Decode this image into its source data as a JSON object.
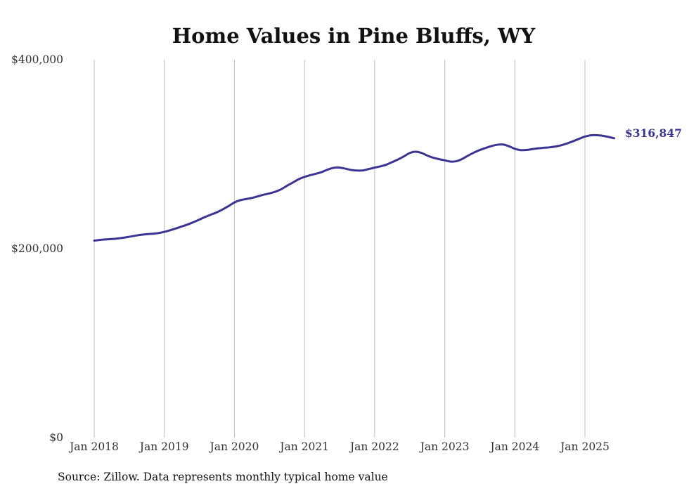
{
  "chart_data": {
    "type": "line",
    "title": "Home Values in Pine Bluffs, WY",
    "xlabel": "",
    "ylabel": "",
    "source": "Source: Zillow. Data represents monthly typical home value",
    "ylim": [
      0,
      400000
    ],
    "yticks": [
      {
        "value": 0,
        "label": "$0"
      },
      {
        "value": 200000,
        "label": "$200,000"
      },
      {
        "value": 400000,
        "label": "$400,000"
      }
    ],
    "xticks": [
      {
        "value": "2018-01",
        "label": "Jan 2018"
      },
      {
        "value": "2019-01",
        "label": "Jan 2019"
      },
      {
        "value": "2020-01",
        "label": "Jan 2020"
      },
      {
        "value": "2021-01",
        "label": "Jan 2021"
      },
      {
        "value": "2022-01",
        "label": "Jan 2022"
      },
      {
        "value": "2023-01",
        "label": "Jan 2023"
      },
      {
        "value": "2024-01",
        "label": "Jan 2024"
      },
      {
        "value": "2025-01",
        "label": "Jan 2025"
      }
    ],
    "grid": "vertical",
    "line_color": "#3b3494",
    "end_label": "$316,847",
    "series": [
      {
        "x": [
          "2018-01",
          "2018-02",
          "2018-03",
          "2018-04",
          "2018-05",
          "2018-06",
          "2018-07",
          "2018-08",
          "2018-09",
          "2018-10",
          "2018-11",
          "2018-12",
          "2019-01",
          "2019-02",
          "2019-03",
          "2019-04",
          "2019-05",
          "2019-06",
          "2019-07",
          "2019-08",
          "2019-09",
          "2019-10",
          "2019-11",
          "2019-12",
          "2020-01",
          "2020-02",
          "2020-03",
          "2020-04",
          "2020-05",
          "2020-06",
          "2020-07",
          "2020-08",
          "2020-09",
          "2020-10",
          "2020-11",
          "2020-12",
          "2021-01",
          "2021-02",
          "2021-03",
          "2021-04",
          "2021-05",
          "2021-06",
          "2021-07",
          "2021-08",
          "2021-09",
          "2021-10",
          "2021-11",
          "2021-12",
          "2022-01",
          "2022-02",
          "2022-03",
          "2022-04",
          "2022-05",
          "2022-06",
          "2022-07",
          "2022-08",
          "2022-09",
          "2022-10",
          "2022-11",
          "2022-12",
          "2023-01",
          "2023-02",
          "2023-03",
          "2023-04",
          "2023-05",
          "2023-06",
          "2023-07",
          "2023-08",
          "2023-09",
          "2023-10",
          "2023-11",
          "2023-12",
          "2024-01",
          "2024-02",
          "2024-03",
          "2024-04",
          "2024-05",
          "2024-06",
          "2024-07",
          "2024-08",
          "2024-09",
          "2024-10",
          "2024-11",
          "2024-12",
          "2025-01",
          "2025-02",
          "2025-03",
          "2025-04",
          "2025-05",
          "2025-06"
        ],
        "values": [
          208500,
          209300,
          209800,
          210200,
          210800,
          211600,
          212600,
          213700,
          214700,
          215300,
          215800,
          216500,
          217800,
          219500,
          221400,
          223500,
          225600,
          228100,
          230800,
          233600,
          236100,
          238500,
          241600,
          245100,
          248900,
          251300,
          252500,
          253700,
          255400,
          257100,
          258500,
          260300,
          262900,
          266600,
          270000,
          273500,
          276000,
          277800,
          279400,
          281200,
          283800,
          285600,
          285800,
          284700,
          283300,
          282700,
          282800,
          284300,
          285800,
          287100,
          288900,
          291600,
          294400,
          297600,
          301200,
          302600,
          301400,
          298600,
          296300,
          294800,
          293500,
          292200,
          292600,
          295000,
          298500,
          301700,
          304400,
          306600,
          308600,
          310000,
          310200,
          308400,
          305700,
          304300,
          304500,
          305400,
          306200,
          306800,
          307300,
          308200,
          309500,
          311500,
          313800,
          316300,
          318600,
          320000,
          320100,
          319500,
          318300,
          316847
        ]
      }
    ]
  }
}
